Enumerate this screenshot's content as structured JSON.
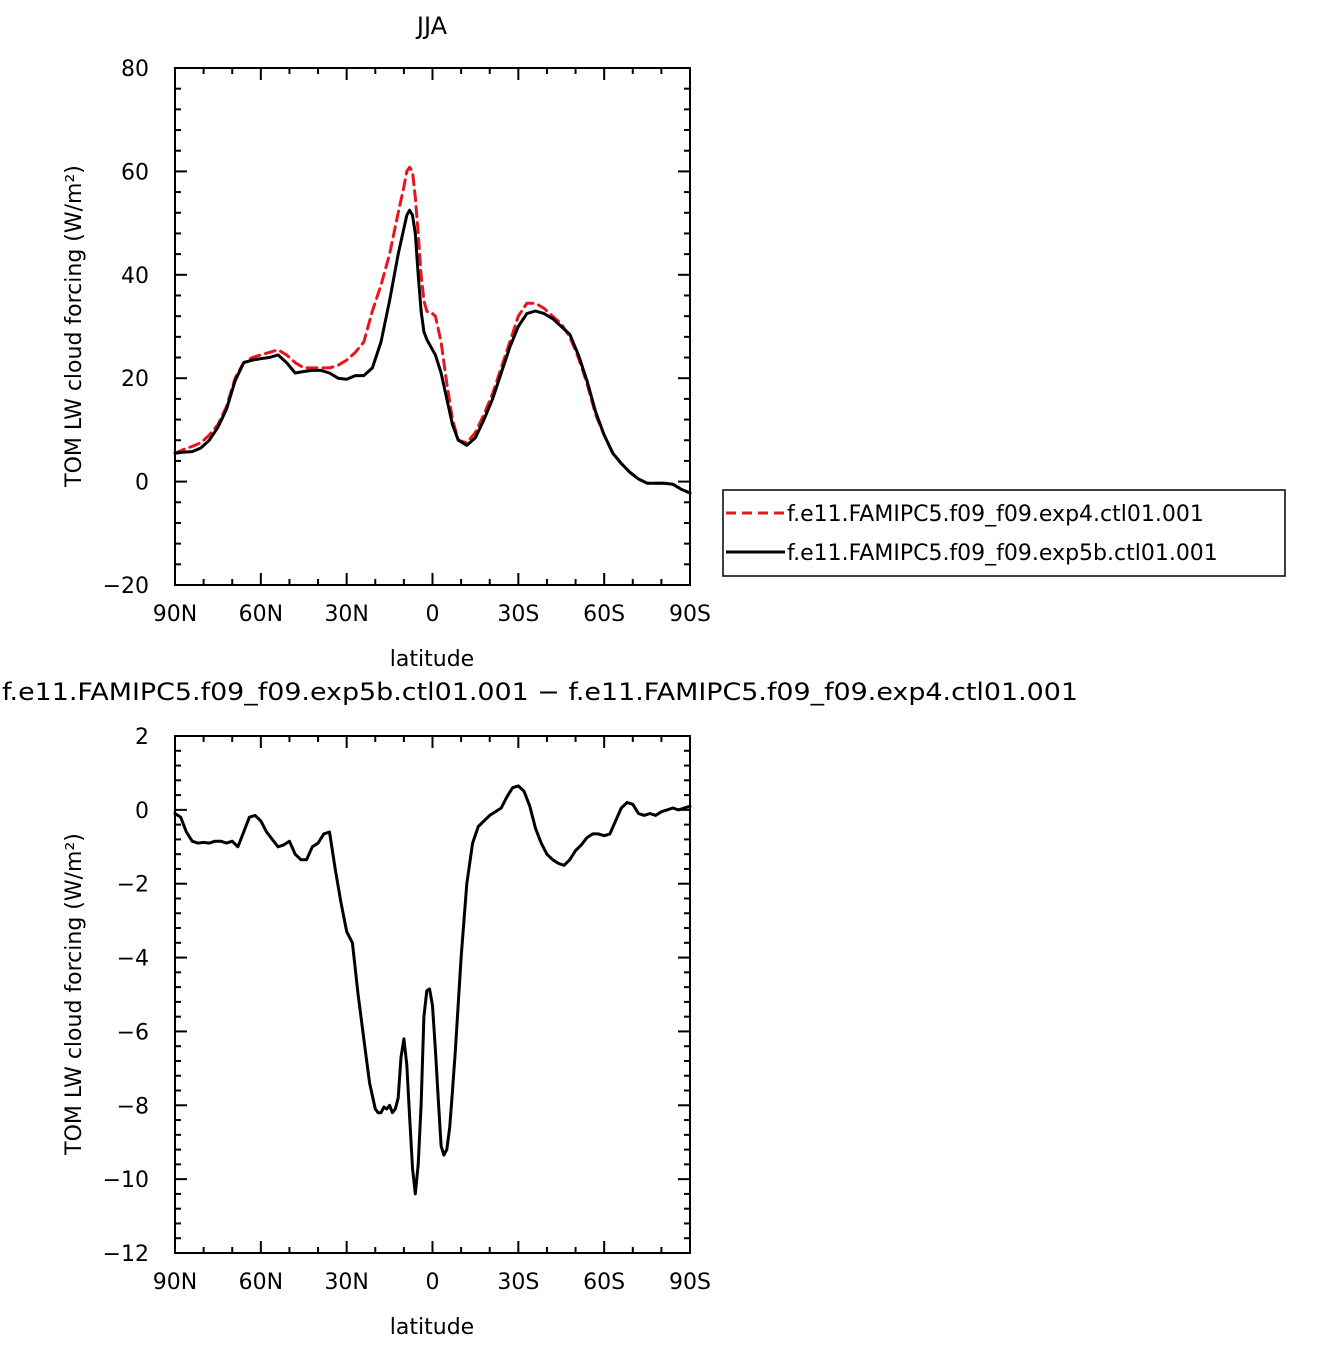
{
  "chart_data": [
    {
      "type": "line",
      "title": "JJA",
      "xlabel": "latitude",
      "ylabel": "TOM LW cloud forcing (W/m²)",
      "xlim": [
        90,
        -90
      ],
      "ylim": [
        -20,
        80
      ],
      "xticks": [
        90,
        60,
        30,
        0,
        -30,
        -60,
        -90
      ],
      "xtick_labels": [
        "90N",
        "60N",
        "30N",
        "0",
        "30S",
        "60S",
        "90S"
      ],
      "yticks": [
        -20,
        0,
        20,
        40,
        60,
        80
      ],
      "ytick_labels": [
        "−20",
        "0",
        "20",
        "40",
        "60",
        "80"
      ],
      "legend_position": "right",
      "grid": false,
      "series": [
        {
          "name": "f.e11.FAMIPC5.f09_f09.exp4.ctl01.001",
          "color": "#e8141e",
          "dash": "dashed",
          "x": [
            90,
            87,
            84,
            81,
            78,
            75,
            72,
            69,
            66,
            63,
            60,
            57,
            54,
            51,
            48,
            45,
            42,
            39,
            36,
            33,
            30,
            27,
            24,
            21,
            18,
            15,
            12,
            10,
            9,
            8,
            7,
            6,
            5,
            4,
            3,
            2,
            1,
            0,
            -1,
            -3,
            -5,
            -7,
            -9,
            -12,
            -15,
            -18,
            -21,
            -24,
            -27,
            -30,
            -33,
            -36,
            -39,
            -42,
            -45,
            -48,
            -51,
            -54,
            -57,
            -60,
            -63,
            -66,
            -69,
            -72,
            -75,
            -78,
            -81,
            -84,
            -87,
            -90
          ],
          "y": [
            5.5,
            6.2,
            6.8,
            7.5,
            9.0,
            11.0,
            14.5,
            20.0,
            23.0,
            24.0,
            24.5,
            25.0,
            25.5,
            24.5,
            23.0,
            22.0,
            22.0,
            22.0,
            22.0,
            22.5,
            23.5,
            25.0,
            27.0,
            33.0,
            38.0,
            44.0,
            52.0,
            57.0,
            60.0,
            60.8,
            60.0,
            55.0,
            48.0,
            40.0,
            35.0,
            33.0,
            32.5,
            32.5,
            32.0,
            27.0,
            19.0,
            12.0,
            8.0,
            7.5,
            9.5,
            13.0,
            17.0,
            22.0,
            27.0,
            32.0,
            34.5,
            34.5,
            33.5,
            32.0,
            30.5,
            28.0,
            24.0,
            19.0,
            13.0,
            9.0,
            5.5,
            3.5,
            1.8,
            0.5,
            -0.3,
            -0.3,
            -0.3,
            -0.5,
            -1.5,
            -2.2
          ]
        },
        {
          "name": "f.e11.FAMIPC5.f09_f09.exp5b.ctl01.001",
          "color": "#000000",
          "dash": "solid",
          "x": [
            90,
            87,
            84,
            81,
            78,
            75,
            72,
            69,
            66,
            63,
            60,
            57,
            54,
            51,
            48,
            45,
            42,
            39,
            36,
            33,
            30,
            27,
            24,
            21,
            18,
            15,
            12,
            10,
            9,
            8,
            7,
            6,
            5,
            4,
            3,
            2,
            1,
            0,
            -1,
            -3,
            -5,
            -7,
            -9,
            -12,
            -15,
            -18,
            -21,
            -24,
            -27,
            -30,
            -33,
            -36,
            -39,
            -42,
            -45,
            -48,
            -51,
            -54,
            -57,
            -60,
            -63,
            -66,
            -69,
            -72,
            -75,
            -78,
            -81,
            -84,
            -87,
            -90
          ],
          "y": [
            5.5,
            5.7,
            5.8,
            6.5,
            8.0,
            10.5,
            14.0,
            19.5,
            23.0,
            23.5,
            23.8,
            24.0,
            24.5,
            23.0,
            21.0,
            21.3,
            21.5,
            21.5,
            21.0,
            20.0,
            19.8,
            20.5,
            20.5,
            22.0,
            27.0,
            35.0,
            44.0,
            49.0,
            51.5,
            52.5,
            51.5,
            48.0,
            40.0,
            33.0,
            29.0,
            27.5,
            26.5,
            25.5,
            24.5,
            21.0,
            16.0,
            11.0,
            8.0,
            7.0,
            8.5,
            12.0,
            16.0,
            21.0,
            26.0,
            30.0,
            32.5,
            33.0,
            32.5,
            31.5,
            30.0,
            28.5,
            24.5,
            19.5,
            13.5,
            9.0,
            5.5,
            3.5,
            1.8,
            0.5,
            -0.3,
            -0.3,
            -0.3,
            -0.5,
            -1.5,
            -2.2
          ]
        }
      ]
    },
    {
      "type": "line",
      "title": "f.e11.FAMIPC5.f09_f09.exp5b.ctl01.001 − f.e11.FAMIPC5.f09_f09.exp4.ctl01.001",
      "xlabel": "latitude",
      "ylabel": "TOM LW cloud forcing (W/m²)",
      "xlim": [
        90,
        -90
      ],
      "ylim": [
        -12,
        2
      ],
      "xticks": [
        90,
        60,
        30,
        0,
        -30,
        -60,
        -90
      ],
      "xtick_labels": [
        "90N",
        "60N",
        "30N",
        "0",
        "30S",
        "60S",
        "90S"
      ],
      "yticks": [
        -12,
        -10,
        -8,
        -6,
        -4,
        -2,
        0,
        2
      ],
      "ytick_labels": [
        "−12",
        "−10",
        "−8",
        "−6",
        "−4",
        "−2",
        "0",
        "2"
      ],
      "grid": false,
      "series": [
        {
          "color": "#000000",
          "dash": "solid",
          "x": [
            90,
            88,
            86,
            84,
            82,
            80,
            78,
            76,
            74,
            72,
            70,
            68,
            66,
            64,
            62,
            60,
            58,
            56,
            54,
            52,
            50,
            48,
            46,
            44,
            42,
            40,
            38,
            36,
            34,
            32,
            30,
            28,
            26,
            24,
            22,
            20,
            19,
            18,
            17,
            16,
            15,
            14,
            13,
            12,
            11,
            10,
            9,
            8,
            7,
            6,
            5,
            4,
            3,
            2,
            1,
            0,
            -1,
            -2,
            -3,
            -4,
            -5,
            -6,
            -7,
            -8,
            -10,
            -12,
            -14,
            -16,
            -18,
            -20,
            -22,
            -24,
            -26,
            -28,
            -30,
            -32,
            -34,
            -36,
            -38,
            -40,
            -42,
            -44,
            -46,
            -48,
            -50,
            -52,
            -54,
            -56,
            -58,
            -60,
            -62,
            -64,
            -66,
            -68,
            -70,
            -72,
            -74,
            -76,
            -78,
            -80,
            -82,
            -84,
            -86,
            -88,
            -90
          ],
          "y": [
            -0.1,
            -0.2,
            -0.6,
            -0.85,
            -0.9,
            -0.88,
            -0.9,
            -0.85,
            -0.85,
            -0.9,
            -0.85,
            -1.0,
            -0.6,
            -0.2,
            -0.15,
            -0.3,
            -0.6,
            -0.8,
            -1.0,
            -0.95,
            -0.85,
            -1.2,
            -1.35,
            -1.35,
            -1.0,
            -0.9,
            -0.65,
            -0.6,
            -1.6,
            -2.5,
            -3.3,
            -3.6,
            -5.0,
            -6.2,
            -7.4,
            -8.1,
            -8.2,
            -8.2,
            -8.05,
            -8.1,
            -8.0,
            -8.2,
            -8.1,
            -7.8,
            -6.7,
            -6.2,
            -6.9,
            -8.3,
            -9.7,
            -10.4,
            -9.6,
            -8.0,
            -5.6,
            -4.9,
            -4.85,
            -5.3,
            -6.5,
            -7.8,
            -9.1,
            -9.35,
            -9.2,
            -8.6,
            -7.6,
            -6.5,
            -4.0,
            -2.0,
            -0.9,
            -0.45,
            -0.3,
            -0.15,
            -0.05,
            0.05,
            0.35,
            0.6,
            0.65,
            0.5,
            0.1,
            -0.5,
            -0.9,
            -1.2,
            -1.35,
            -1.45,
            -1.5,
            -1.35,
            -1.1,
            -0.95,
            -0.75,
            -0.65,
            -0.65,
            -0.7,
            -0.65,
            -0.3,
            0.05,
            0.2,
            0.15,
            -0.1,
            -0.15,
            -0.1,
            -0.15,
            -0.05,
            0.0,
            0.05,
            0.0,
            0.05,
            0.1
          ]
        }
      ]
    }
  ]
}
